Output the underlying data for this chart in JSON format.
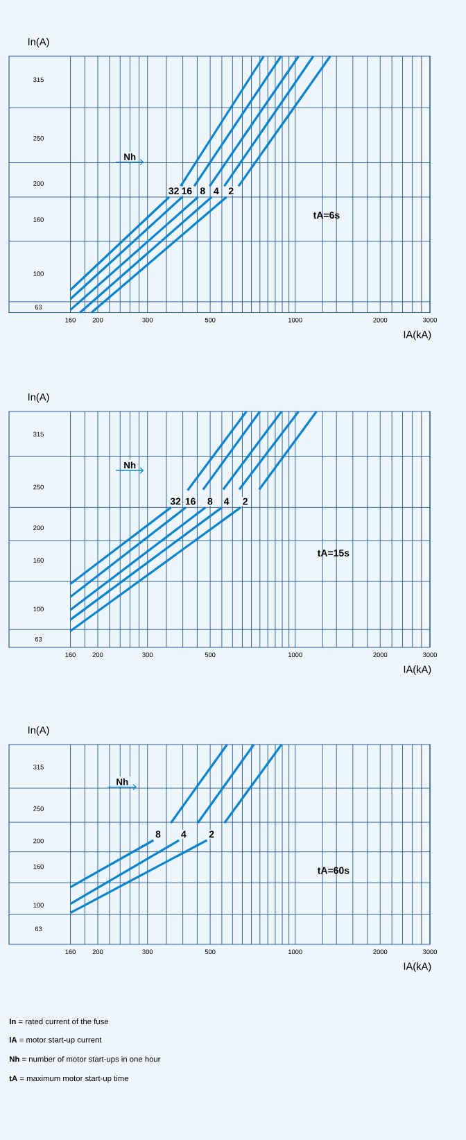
{
  "chart_data": [
    {
      "type": "line",
      "xlabel": "IA(kA)",
      "ylabel": "In(A)",
      "log": "x",
      "grid": true,
      "xlim": [
        97,
        3000
      ],
      "xticks": [
        160,
        {
          "value": 180,
          "label": null
        },
        200,
        {
          "value": 220,
          "label": null
        },
        {
          "value": 240,
          "label": null
        },
        {
          "value": 260,
          "label": null
        },
        {
          "value": 280,
          "label": null
        },
        300,
        {
          "value": 350,
          "label": null
        },
        {
          "value": 400,
          "label": null
        },
        {
          "value": 450,
          "label": null
        },
        500,
        {
          "value": 550,
          "label": null
        },
        {
          "value": 600,
          "label": null
        },
        {
          "value": 650,
          "label": null
        },
        {
          "value": 700,
          "label": null
        },
        {
          "value": 750,
          "label": null
        },
        {
          "value": 800,
          "label": null
        },
        {
          "value": 850,
          "label": null
        },
        {
          "value": 900,
          "label": null
        },
        {
          "value": 950,
          "label": null
        },
        1000,
        {
          "value": 1250,
          "label": null
        },
        {
          "value": 1400,
          "label": null
        },
        {
          "value": 1600,
          "label": null
        },
        {
          "value": 1800,
          "label": null
        },
        2000,
        {
          "value": 2200,
          "label": null
        },
        {
          "value": 2400,
          "label": null
        },
        {
          "value": 2600,
          "label": null
        },
        {
          "value": 2800,
          "label": null
        },
        3000
      ],
      "ylim": [
        57,
        341
      ],
      "yticks": [
        63,
        {
          "value": 69,
          "label": null
        },
        100,
        {
          "value": 136,
          "label": null
        },
        160,
        {
          "value": 185,
          "label": null
        },
        200,
        {
          "value": 223,
          "label": null
        },
        250,
        {
          "value": 284,
          "label": null
        },
        315
      ],
      "series": [
        {
          "name": "32",
          "color": "#0a84cc",
          "x": [
            160,
            358
          ],
          "values": [
            82,
            185
          ]
        },
        {
          "color": "#0a84cc",
          "x": [
            393,
            774
          ],
          "values": [
            197,
            341
          ]
        },
        {
          "name": "16",
          "color": "#0a84cc",
          "x": [
            160,
            398
          ],
          "values": [
            72,
            185
          ]
        },
        {
          "color": "#0a84cc",
          "x": [
            439,
            891
          ],
          "values": [
            197,
            341
          ]
        },
        {
          "name": "8",
          "color": "#0a84cc",
          "x": [
            160,
            453
          ],
          "values": [
            60,
            185
          ]
        },
        {
          "color": "#0a84cc",
          "x": [
            498,
            1028
          ],
          "values": [
            197,
            341
          ]
        },
        {
          "name": "4",
          "color": "#0a84cc",
          "x": [
            173,
            506
          ],
          "values": [
            57,
            185
          ]
        },
        {
          "color": "#0a84cc",
          "x": [
            561,
            1159
          ],
          "values": [
            197,
            341
          ]
        },
        {
          "name": "2",
          "color": "#0a84cc",
          "x": [
            190,
            571
          ],
          "values": [
            57,
            185
          ]
        },
        {
          "color": "#0a84cc",
          "x": [
            630,
            1331
          ],
          "values": [
            197,
            341
          ]
        }
      ],
      "annotations": [
        "Nh",
        "**tA=6s**"
      ]
    },
    {
      "type": "line",
      "xlabel": "IA(kA)",
      "ylabel": "In(A)",
      "log": "x",
      "grid": true,
      "xlim": [
        97,
        3000
      ],
      "xticks": [
        160,
        {
          "value": 180,
          "label": null
        },
        200,
        {
          "value": 220,
          "label": null
        },
        {
          "value": 240,
          "label": null
        },
        {
          "value": 260,
          "label": null
        },
        {
          "value": 280,
          "label": null
        },
        300,
        {
          "value": 350,
          "label": null
        },
        {
          "value": 400,
          "label": null
        },
        {
          "value": 450,
          "label": null
        },
        500,
        {
          "value": 550,
          "label": null
        },
        {
          "value": 600,
          "label": null
        },
        {
          "value": 650,
          "label": null
        },
        {
          "value": 700,
          "label": null
        },
        {
          "value": 750,
          "label": null
        },
        {
          "value": 800,
          "label": null
        },
        {
          "value": 850,
          "label": null
        },
        {
          "value": 900,
          "label": null
        },
        {
          "value": 950,
          "label": null
        },
        1000,
        {
          "value": 1250,
          "label": null
        },
        {
          "value": 1400,
          "label": null
        },
        {
          "value": 1600,
          "label": null
        },
        {
          "value": 1800,
          "label": null
        },
        2000,
        {
          "value": 2200,
          "label": null
        },
        {
          "value": 2400,
          "label": null
        },
        {
          "value": 2600,
          "label": null
        },
        {
          "value": 2800,
          "label": null
        },
        3000
      ],
      "ylim": [
        53,
        343
      ],
      "yticks": [
        63,
        {
          "value": 75,
          "label": null
        },
        100,
        {
          "value": 134,
          "label": null
        },
        160,
        {
          "value": 184,
          "label": null
        },
        200,
        {
          "value": 225,
          "label": null
        },
        250,
        {
          "value": 288,
          "label": null
        },
        315
      ],
      "series": [
        {
          "name": "32",
          "color": "#0a84cc",
          "x": [
            160,
            363
          ],
          "values": [
            131,
            225
          ]
        },
        {
          "color": "#0a84cc",
          "x": [
            416,
            672
          ],
          "values": [
            246,
            343
          ]
        },
        {
          "name": "16",
          "color": "#0a84cc",
          "x": [
            160,
            410
          ],
          "values": [
            115,
            225
          ]
        },
        {
          "color": "#0a84cc",
          "x": [
            472,
            750
          ],
          "values": [
            247,
            343
          ]
        },
        {
          "name": "8",
          "color": "#0a84cc",
          "x": [
            160,
            481
          ],
          "values": [
            99,
            225
          ]
        },
        {
          "color": "#0a84cc",
          "x": [
            556,
            895
          ],
          "values": [
            247,
            343
          ]
        },
        {
          "name": "4",
          "color": "#0a84cc",
          "x": [
            160,
            550
          ],
          "values": [
            87,
            225
          ]
        },
        {
          "color": "#0a84cc",
          "x": [
            634,
            1028
          ],
          "values": [
            247,
            343
          ]
        },
        {
          "name": "2",
          "color": "#0a84cc",
          "x": [
            160,
            641
          ],
          "values": [
            73,
            225
          ]
        },
        {
          "color": "#0a84cc",
          "x": [
            746,
            1190
          ],
          "values": [
            247,
            343
          ]
        }
      ],
      "annotations": [
        "Nh",
        "**tA=15s**"
      ]
    },
    {
      "type": "line",
      "xlabel": "IA(kA)",
      "ylabel": "In(A)",
      "log": "x",
      "grid": true,
      "xlim": [
        97,
        3000
      ],
      "xticks": [
        160,
        {
          "value": 180,
          "label": null
        },
        200,
        {
          "value": 220,
          "label": null
        },
        {
          "value": 240,
          "label": null
        },
        {
          "value": 260,
          "label": null
        },
        {
          "value": 280,
          "label": null
        },
        300,
        {
          "value": 350,
          "label": null
        },
        {
          "value": 400,
          "label": null
        },
        {
          "value": 450,
          "label": null
        },
        500,
        {
          "value": 550,
          "label": null
        },
        {
          "value": 600,
          "label": null
        },
        {
          "value": 650,
          "label": null
        },
        {
          "value": 700,
          "label": null
        },
        {
          "value": 750,
          "label": null
        },
        {
          "value": 800,
          "label": null
        },
        {
          "value": 850,
          "label": null
        },
        {
          "value": 900,
          "label": null
        },
        {
          "value": 950,
          "label": null
        },
        1000,
        {
          "value": 1250,
          "label": null
        },
        {
          "value": 1400,
          "label": null
        },
        {
          "value": 1600,
          "label": null
        },
        {
          "value": 1800,
          "label": null
        },
        2000,
        {
          "value": 2200,
          "label": null
        },
        {
          "value": 2400,
          "label": null
        },
        {
          "value": 2600,
          "label": null
        },
        {
          "value": 2800,
          "label": null
        },
        3000
      ],
      "ylim": [
        39,
        350
      ],
      "yticks": [
        63,
        {
          "value": 86,
          "label": null
        },
        100,
        {
          "value": 135,
          "label": null
        },
        160,
        {
          "value": 183,
          "label": null
        },
        200,
        {
          "value": 229,
          "label": null
        },
        250,
        {
          "value": 282,
          "label": null
        },
        315
      ],
      "series": [
        {
          "name": "8",
          "color": "#0a84cc",
          "x": [
            160,
            315
          ],
          "values": [
            128,
            201
          ]
        },
        {
          "color": "#0a84cc",
          "x": [
            363,
            574
          ],
          "values": [
            228,
            350
          ]
        },
        {
          "name": "4",
          "color": "#0a84cc",
          "x": [
            160,
            388
          ],
          "values": [
            102,
            201
          ]
        },
        {
          "color": "#0a84cc",
          "x": [
            452,
            714
          ],
          "values": [
            228,
            350
          ]
        },
        {
          "name": "2",
          "color": "#0a84cc",
          "x": [
            160,
            487
          ],
          "values": [
            88,
            201
          ]
        },
        {
          "color": "#0a84cc",
          "x": [
            562,
            895
          ],
          "values": [
            228,
            350
          ]
        }
      ],
      "annotations": [
        "Nh",
        "**tA=60s**",
        "**In** = rated current of the fuse",
        "**IA** = motor start-up current",
        "**Nh** = number of motor start-ups in one hour",
        "**tA** = maximum motor start-up time"
      ]
    }
  ]
}
